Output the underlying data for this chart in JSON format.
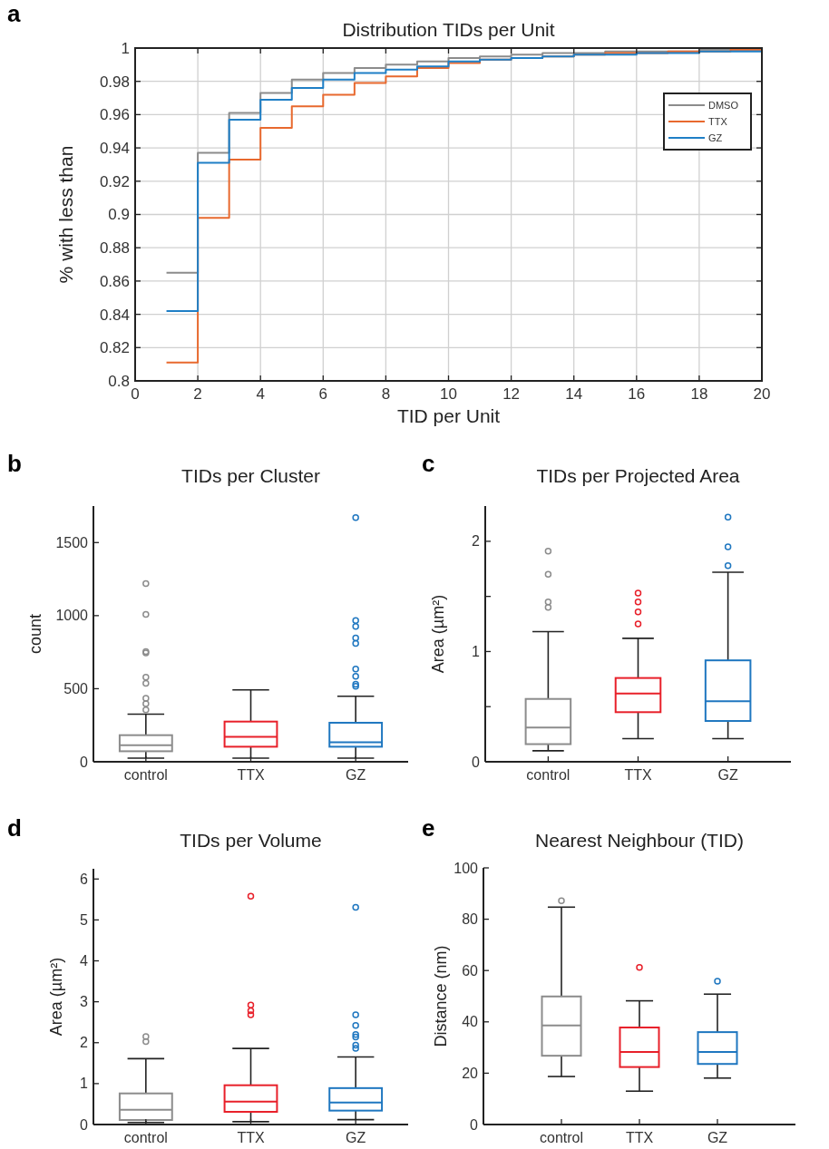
{
  "chart_data": [
    {
      "type": "step",
      "title": "Distribution TIDs per Unit",
      "xlabel": "TID per Unit",
      "ylabel": "% with less than",
      "annotations": [
        "a"
      ],
      "x": [
        1,
        2,
        3,
        4,
        5,
        6,
        7,
        8,
        9,
        10,
        11,
        12,
        13,
        14,
        15,
        16,
        17,
        18,
        19,
        20
      ],
      "xlim": [
        0,
        20
      ],
      "xticks": [
        0,
        2,
        4,
        6,
        8,
        10,
        12,
        14,
        16,
        18,
        20
      ],
      "ylim": [
        0.8,
        1
      ],
      "yticks": [
        0.8,
        0.82,
        0.84,
        0.86,
        0.88,
        0.9,
        0.92,
        0.94,
        0.96,
        0.98,
        1
      ],
      "grid": true,
      "legend": "top right",
      "series": [
        {
          "name": "DMSO",
          "color": "#8c8c8c",
          "values": [
            0.865,
            0.937,
            0.961,
            0.973,
            0.981,
            0.985,
            0.988,
            0.99,
            0.992,
            0.994,
            0.995,
            0.996,
            0.997,
            0.997,
            0.998,
            0.998,
            0.998,
            0.999,
            0.999,
            0.999
          ]
        },
        {
          "name": "TTX",
          "color": "#e8692e",
          "values": [
            0.811,
            0.898,
            0.933,
            0.952,
            0.965,
            0.972,
            0.979,
            0.983,
            0.988,
            0.991,
            0.993,
            0.994,
            0.995,
            0.996,
            0.997,
            0.997,
            0.998,
            0.998,
            0.999,
            0.999
          ]
        },
        {
          "name": "GZ",
          "color": "#1f7fc6",
          "values": [
            0.842,
            0.931,
            0.957,
            0.969,
            0.976,
            0.981,
            0.985,
            0.987,
            0.989,
            0.992,
            0.993,
            0.994,
            0.995,
            0.996,
            0.996,
            0.997,
            0.997,
            0.998,
            0.998,
            0.998
          ]
        }
      ]
    },
    {
      "type": "box",
      "title": "TIDs per Cluster",
      "ylabel": "count",
      "annotations": [
        "b"
      ],
      "categories": [
        "control",
        "TTX",
        "GZ"
      ],
      "colors": [
        "#8c8c8c",
        "#e8202a",
        "#1f77c0"
      ],
      "ylim": [
        0,
        1750
      ],
      "yticks": [
        0,
        500,
        1000,
        1500
      ],
      "boxes": [
        {
          "low": 25,
          "q1": 72,
          "median": 114,
          "q3": 182,
          "high": 326,
          "outliers": [
            1219,
            1008,
            754,
            744,
            579,
            537,
            434,
            397,
            355
          ]
        },
        {
          "low": 25,
          "q1": 103,
          "median": 171,
          "q3": 275,
          "high": 492
        },
        {
          "low": 25,
          "q1": 103,
          "median": 134,
          "q3": 267,
          "high": 448,
          "outliers": [
            1671,
            967,
            926,
            847,
            810,
            634,
            585,
            531,
            517
          ]
        }
      ]
    },
    {
      "type": "box",
      "title": "TIDs per Projected Area",
      "ylabel": "Area (µm²)",
      "annotations": [
        "c"
      ],
      "categories": [
        "control",
        "TTX",
        "GZ"
      ],
      "colors": [
        "#8c8c8c",
        "#e8202a",
        "#1f77c0"
      ],
      "ylim": [
        0,
        2.32
      ],
      "yticks": [
        0,
        {
          "value": 0.5,
          "label": null
        },
        1,
        {
          "value": 1.5,
          "label": null
        },
        2
      ],
      "boxes": [
        {
          "low": 0.1,
          "q1": 0.16,
          "median": 0.31,
          "q3": 0.57,
          "high": 1.18,
          "outliers": [
            1.91,
            1.7,
            1.45,
            1.4
          ]
        },
        {
          "low": 0.21,
          "q1": 0.45,
          "median": 0.62,
          "q3": 0.76,
          "high": 1.12,
          "outliers": [
            1.53,
            1.45,
            1.36,
            1.25
          ]
        },
        {
          "low": 0.21,
          "q1": 0.37,
          "median": 0.55,
          "q3": 0.92,
          "high": 1.72,
          "outliers": [
            2.22,
            1.95,
            1.78
          ]
        }
      ]
    },
    {
      "type": "box",
      "title": "TIDs per Volume",
      "ylabel": "Area (µm²)",
      "annotations": [
        "d"
      ],
      "categories": [
        "control",
        "TTX",
        "GZ"
      ],
      "colors": [
        "#8c8c8c",
        "#e8202a",
        "#1f77c0"
      ],
      "ylim": [
        0,
        6.25
      ],
      "yticks": [
        0,
        1,
        2,
        3,
        4,
        5,
        6
      ],
      "boxes": [
        {
          "low": 0.05,
          "q1": 0.11,
          "median": 0.36,
          "q3": 0.76,
          "high": 1.61,
          "outliers": [
            2.15,
            2.03
          ]
        },
        {
          "low": 0.07,
          "q1": 0.31,
          "median": 0.56,
          "q3": 0.96,
          "high": 1.86,
          "outliers": [
            5.58,
            2.92,
            2.78,
            2.68
          ]
        },
        {
          "low": 0.12,
          "q1": 0.34,
          "median": 0.54,
          "q3": 0.89,
          "high": 1.65,
          "outliers": [
            5.31,
            2.68,
            2.42,
            2.2,
            2.14,
            1.94,
            1.86
          ]
        }
      ]
    },
    {
      "type": "box",
      "title": "Nearest Neighbour (TID)",
      "ylabel": "Distance (nm)",
      "annotations": [
        "e"
      ],
      "categories": [
        "control",
        "TTX",
        "GZ"
      ],
      "colors": [
        "#8c8c8c",
        "#e8202a",
        "#1f77c0"
      ],
      "ylim": [
        0,
        100
      ],
      "yticks": [
        0,
        20,
        40,
        60,
        80,
        100
      ],
      "boxes": [
        {
          "low": 18.7,
          "q1": 26.8,
          "median": 38.6,
          "q3": 49.9,
          "high": 84.7,
          "outliers": [
            87.2
          ]
        },
        {
          "low": 13,
          "q1": 22.4,
          "median": 28.3,
          "q3": 37.8,
          "high": 48.2,
          "outliers": [
            61.2
          ]
        },
        {
          "low": 18.1,
          "q1": 23.6,
          "median": 28.3,
          "q3": 36,
          "high": 50.8,
          "outliers": [
            55.8
          ]
        }
      ]
    }
  ]
}
